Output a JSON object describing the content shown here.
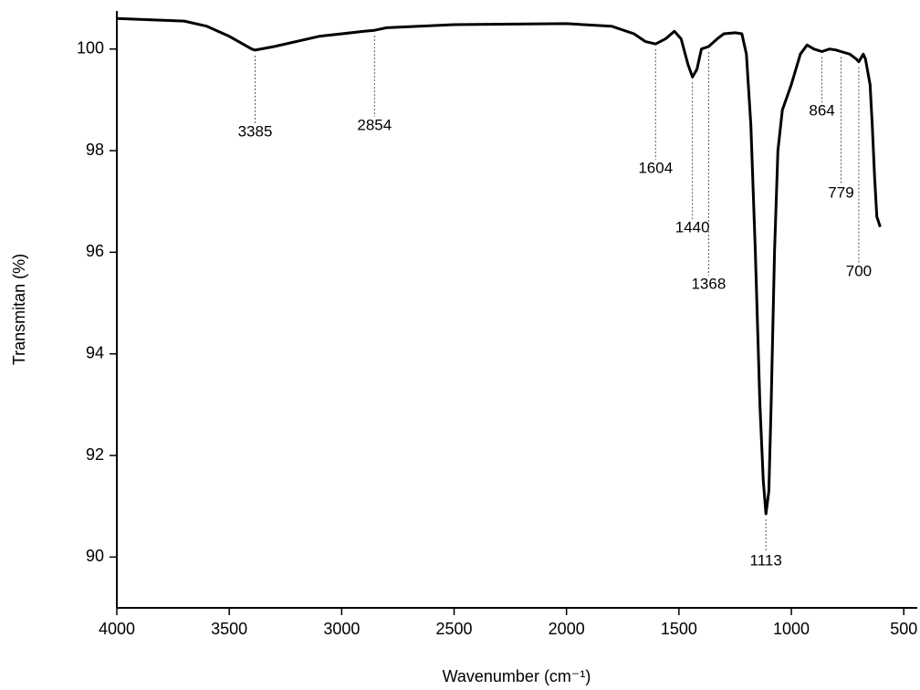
{
  "chart_data": {
    "type": "line",
    "x_label": "Wavenumber (cm⁻¹)",
    "y_label": "Transmitan (%)",
    "xlim": [
      4000,
      440
    ],
    "ylim": [
      89,
      100.75
    ],
    "xticks": [
      4000,
      3500,
      3000,
      2500,
      2000,
      1500,
      1000,
      500
    ],
    "yticks": [
      90,
      92,
      94,
      96,
      98,
      100
    ],
    "color": "#000000",
    "x": [
      4000,
      3700,
      3600,
      3500,
      3400,
      3385,
      3300,
      3100,
      2900,
      2854,
      2800,
      2500,
      2000,
      1800,
      1700,
      1650,
      1604,
      1560,
      1520,
      1490,
      1460,
      1440,
      1420,
      1400,
      1368,
      1330,
      1300,
      1250,
      1220,
      1200,
      1180,
      1160,
      1140,
      1125,
      1113,
      1100,
      1090,
      1075,
      1060,
      1040,
      1000,
      960,
      930,
      900,
      864,
      830,
      800,
      779,
      740,
      710,
      700,
      680,
      670,
      650,
      640,
      630,
      620,
      605
    ],
    "values": [
      100.6,
      100.55,
      100.45,
      100.25,
      100.0,
      99.98,
      100.05,
      100.25,
      100.35,
      100.37,
      100.42,
      100.48,
      100.5,
      100.45,
      100.3,
      100.15,
      100.1,
      100.2,
      100.35,
      100.2,
      99.7,
      99.45,
      99.6,
      100.0,
      100.05,
      100.2,
      100.3,
      100.32,
      100.3,
      99.9,
      98.5,
      96,
      93,
      91.5,
      90.85,
      91.3,
      93,
      96,
      98,
      98.8,
      99.3,
      99.9,
      100.08,
      100.0,
      99.95,
      100.0,
      99.98,
      99.95,
      99.9,
      99.8,
      99.75,
      99.9,
      99.8,
      99.3,
      98.5,
      97.5,
      96.7,
      96.5
    ],
    "peaks": [
      3385,
      2854,
      1604,
      1440,
      1368,
      1113,
      864,
      779,
      700
    ]
  }
}
